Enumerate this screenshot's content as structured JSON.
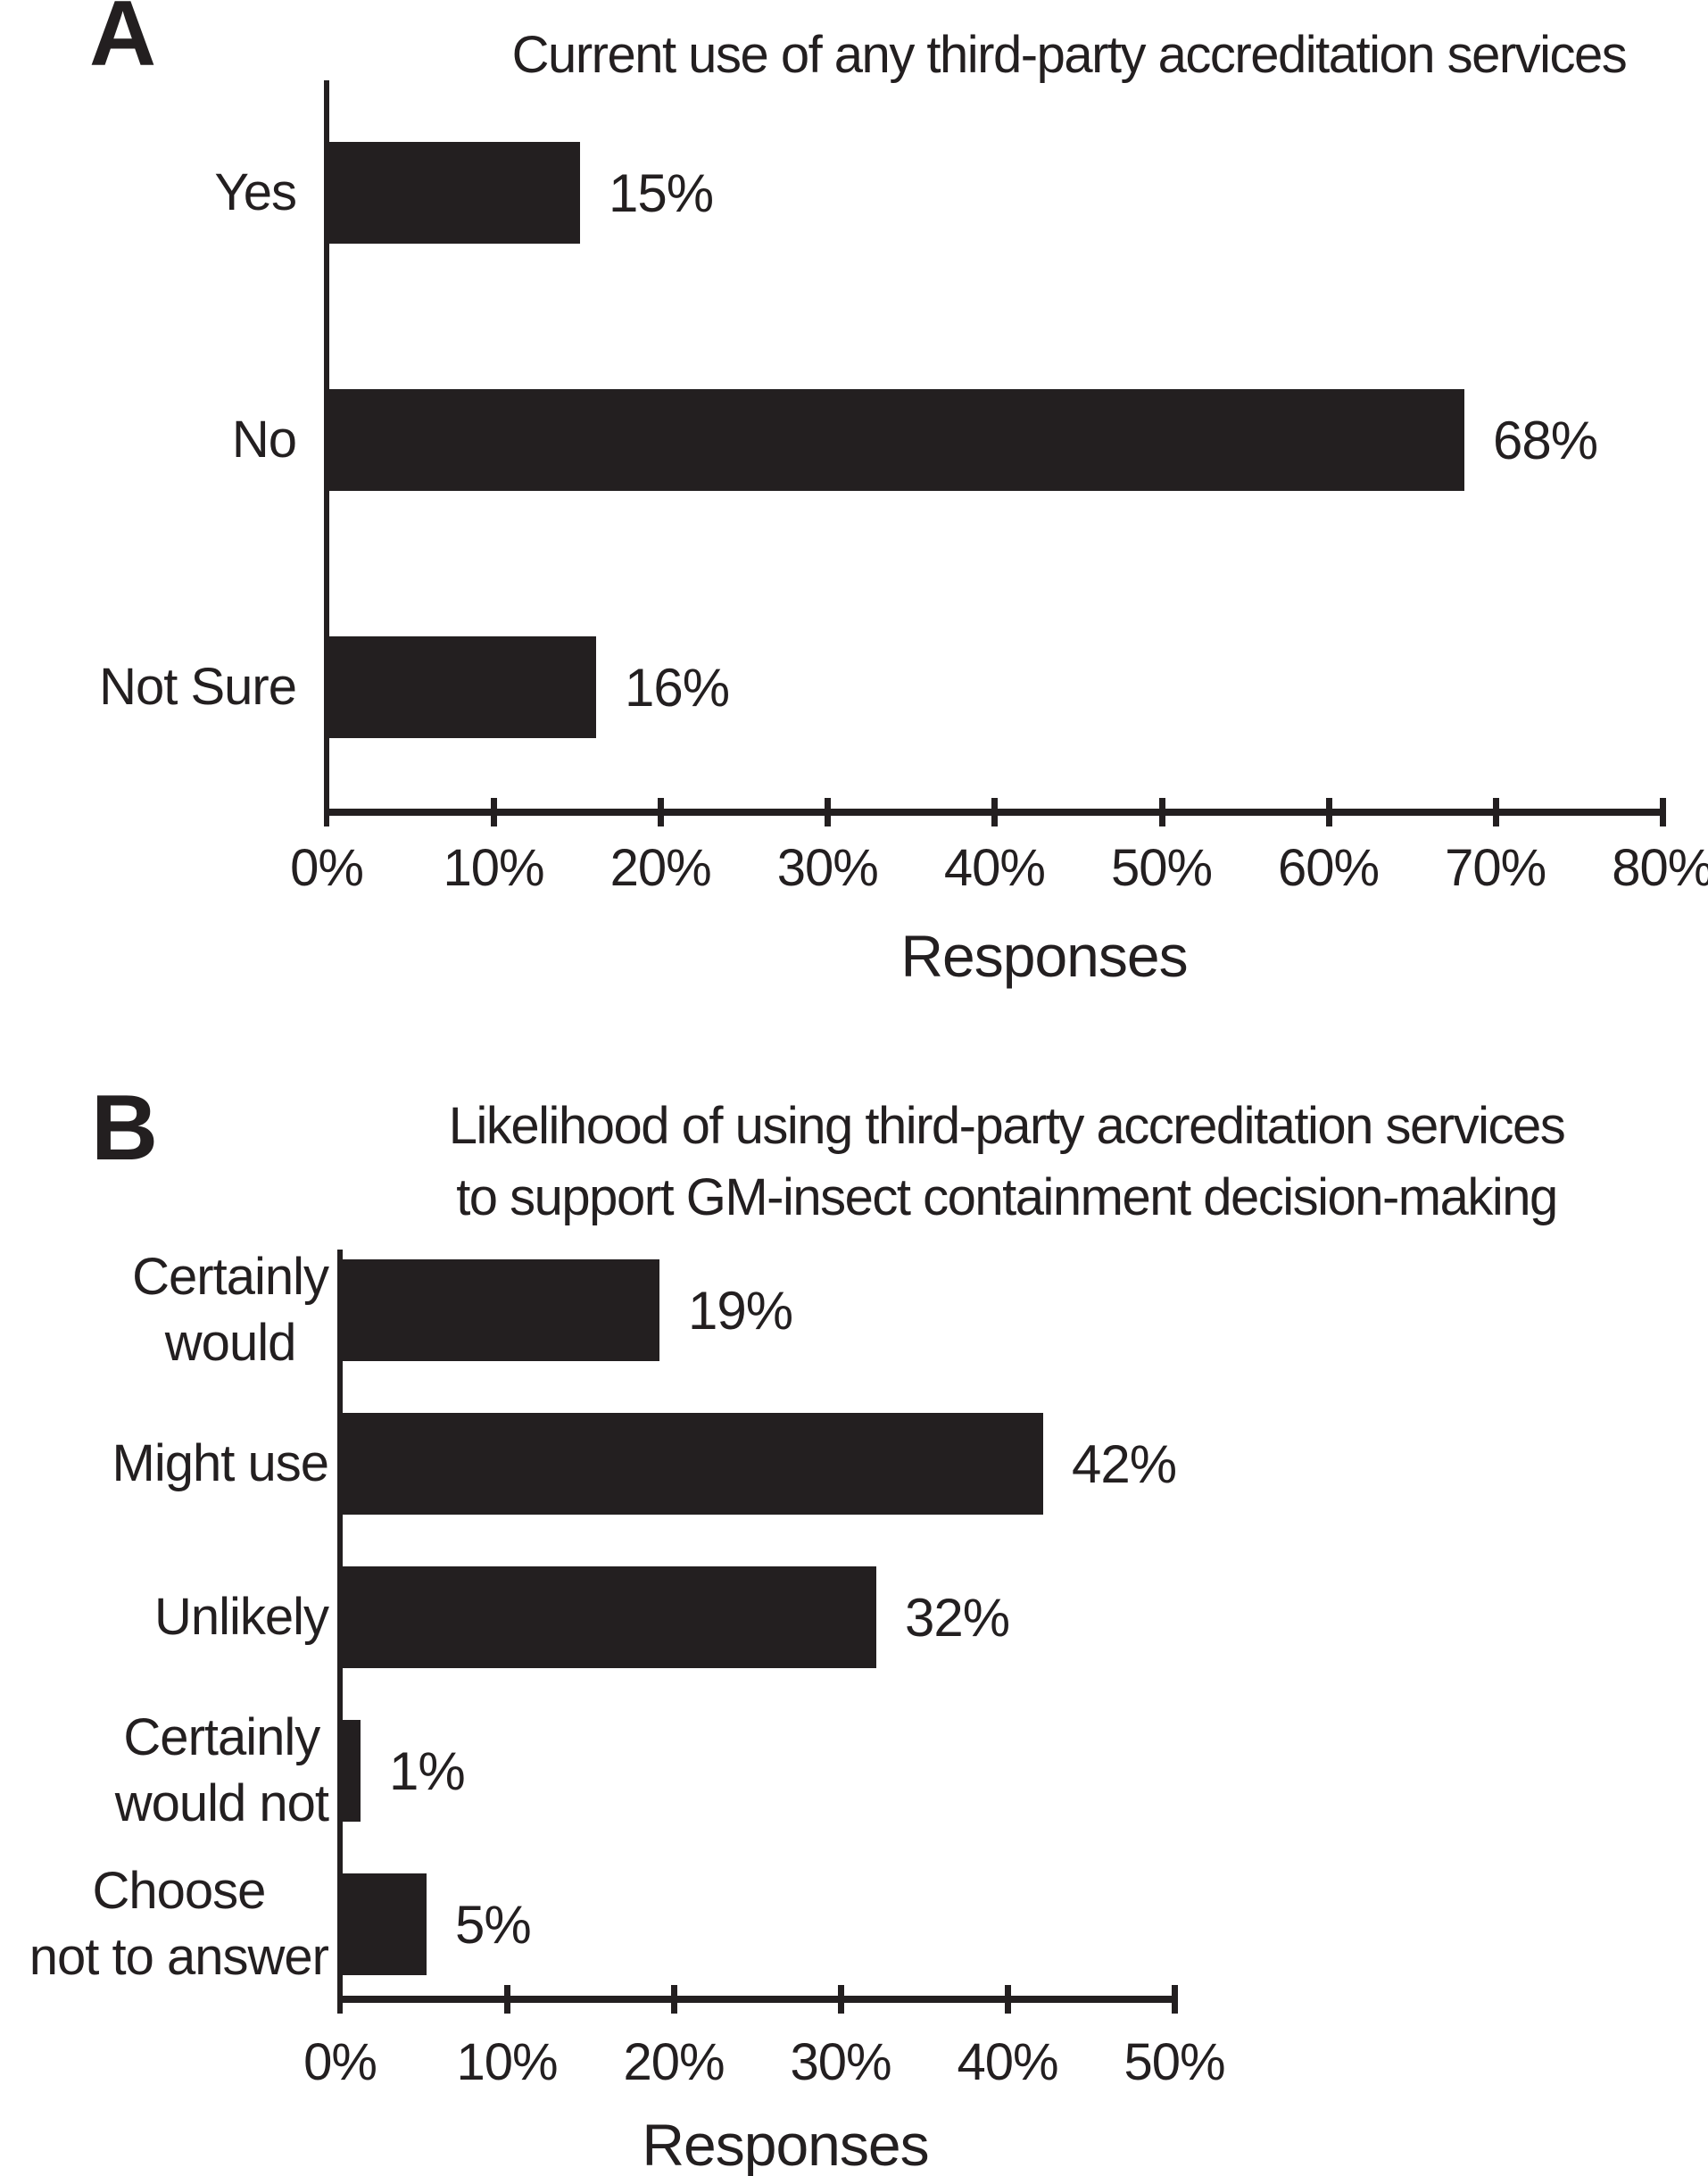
{
  "figure": {
    "background": "#ffffff",
    "ink_color": "#231f20"
  },
  "chart_data": [
    {
      "type": "bar",
      "orientation": "horizontal",
      "panel_label": "A",
      "title": "Current use of any third-party accreditation services",
      "categories": [
        "Yes",
        "No",
        "Not Sure"
      ],
      "values": [
        15,
        68,
        16
      ],
      "value_labels": [
        "15%",
        "68%",
        "16%"
      ],
      "xlabel": "Responses",
      "xlim": [
        0,
        80
      ],
      "xticks": [
        "0%",
        "10%",
        "20%",
        "30%",
        "40%",
        "50%",
        "60%",
        "70%",
        "80%"
      ],
      "bar_color": "#231f20",
      "grid": false,
      "legend": "none"
    },
    {
      "type": "bar",
      "orientation": "horizontal",
      "panel_label": "B",
      "title": "Likelihood of using third-party accreditation services to support GM-insect containment decision-making",
      "title_lines": [
        "Likelihood of using third-party accreditation services",
        "to support GM-insect containment decision-making"
      ],
      "categories": [
        "Certainly would",
        "Might use",
        "Unlikely",
        "Certainly would not",
        "Choose not to answer"
      ],
      "category_lines": [
        [
          "Certainly",
          "would"
        ],
        [
          "Might use"
        ],
        [
          "Unlikely"
        ],
        [
          "Certainly",
          "would not"
        ],
        [
          "Choose",
          "not to answer"
        ]
      ],
      "values": [
        19,
        42,
        32,
        1,
        5
      ],
      "value_labels": [
        "19%",
        "42%",
        "32%",
        "1%",
        "5%"
      ],
      "xlabel": "Responses",
      "xlim": [
        0,
        50
      ],
      "xticks": [
        "0%",
        "10%",
        "20%",
        "30%",
        "40%",
        "50%"
      ],
      "bar_color": "#231f20",
      "grid": false,
      "legend": "none"
    }
  ]
}
